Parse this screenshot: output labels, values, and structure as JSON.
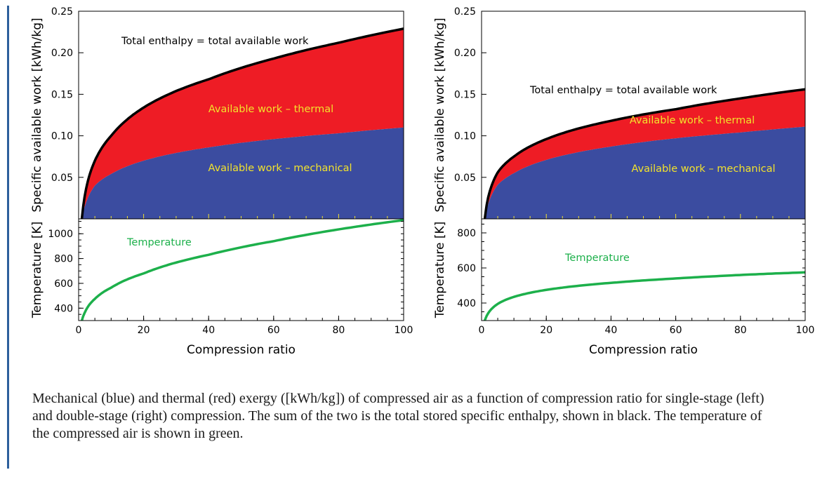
{
  "caption": "Mechanical (blue) and thermal (red) exergy ([kWh/kg]) of compressed air as a function of compression ratio for single-stage (left) and double-stage (right) compression. The sum of the two is the total stored specific enthalpy, shown in black. The temperature of the compressed air is shown in green.",
  "colors": {
    "mechanical": "#3b4ca0",
    "thermal": "#ee1c25",
    "total": "#000000",
    "temperature": "#1db04b",
    "annotation_on_fill": "#f2e22c"
  },
  "chart_data": [
    {
      "type": "area",
      "panel": "single-stage",
      "xlabel": "Compression ratio",
      "xlim": [
        0,
        100
      ],
      "x_ticks": [
        "0",
        "20",
        "40",
        "60",
        "80",
        "100"
      ],
      "top": {
        "ylabel": "Specific available work [kWh/kg]",
        "ylim": [
          0,
          0.25
        ],
        "y_ticks": [
          "0.05",
          "0.10",
          "0.15",
          "0.20",
          "0.25"
        ],
        "x": [
          1,
          2,
          5,
          10,
          20,
          40,
          60,
          80,
          100
        ],
        "series": [
          {
            "name": "Available work – mechanical",
            "values": [
              0,
              0.016,
              0.04,
              0.054,
              0.07,
              0.086,
              0.096,
              0.103,
              0.11
            ]
          },
          {
            "name": "Total enthalpy = total available work",
            "values": [
              0,
              0.03,
              0.07,
              0.1,
              0.134,
              0.168,
              0.193,
              0.212,
              0.229
            ]
          }
        ],
        "annotations": {
          "total": "Total enthalpy = total available work",
          "thermal": "Available work – thermal",
          "mechanical": "Available work – mechanical"
        }
      },
      "bottom": {
        "ylabel": "Temperature [K]",
        "ylim": [
          300,
          1120
        ],
        "y_ticks": [
          "400",
          "600",
          "800",
          "1000"
        ],
        "x": [
          1,
          2,
          5,
          10,
          20,
          40,
          60,
          80,
          100
        ],
        "series": [
          {
            "name": "Temperature",
            "values": [
              300,
              370,
              475,
              565,
              680,
              830,
              940,
              1035,
              1110
            ]
          }
        ],
        "annotation": "Temperature"
      }
    },
    {
      "type": "area",
      "panel": "double-stage",
      "xlabel": "Compression ratio",
      "xlim": [
        0,
        100
      ],
      "x_ticks": [
        "0",
        "20",
        "40",
        "60",
        "80",
        "100"
      ],
      "top": {
        "ylabel": "Specific available work [kWh/kg]",
        "ylim": [
          0,
          0.25
        ],
        "y_ticks": [
          "0.05",
          "0.10",
          "0.15",
          "0.20",
          "0.25"
        ],
        "x": [
          1,
          2,
          5,
          10,
          20,
          40,
          60,
          80,
          100
        ],
        "series": [
          {
            "name": "Available work – mechanical",
            "values": [
              0,
              0.017,
              0.041,
              0.055,
              0.071,
              0.087,
              0.097,
              0.104,
              0.111
            ]
          },
          {
            "name": "Total enthalpy = total available work",
            "values": [
              0,
              0.025,
              0.056,
              0.075,
              0.096,
              0.118,
              0.132,
              0.145,
              0.156
            ]
          }
        ],
        "annotations": {
          "total": "Total enthalpy = total available work",
          "thermal": "Available work – thermal",
          "mechanical": "Available work – mechanical"
        }
      },
      "bottom": {
        "ylabel": "Temperature [K]",
        "ylim": [
          300,
          880
        ],
        "y_ticks": [
          "400",
          "600",
          "800"
        ],
        "x": [
          1,
          2,
          5,
          10,
          20,
          40,
          60,
          80,
          100
        ],
        "series": [
          {
            "name": "Temperature",
            "values": [
              300,
              340,
              395,
              435,
              475,
              515,
              540,
              560,
              575
            ]
          }
        ],
        "annotation": "Temperature"
      }
    }
  ]
}
